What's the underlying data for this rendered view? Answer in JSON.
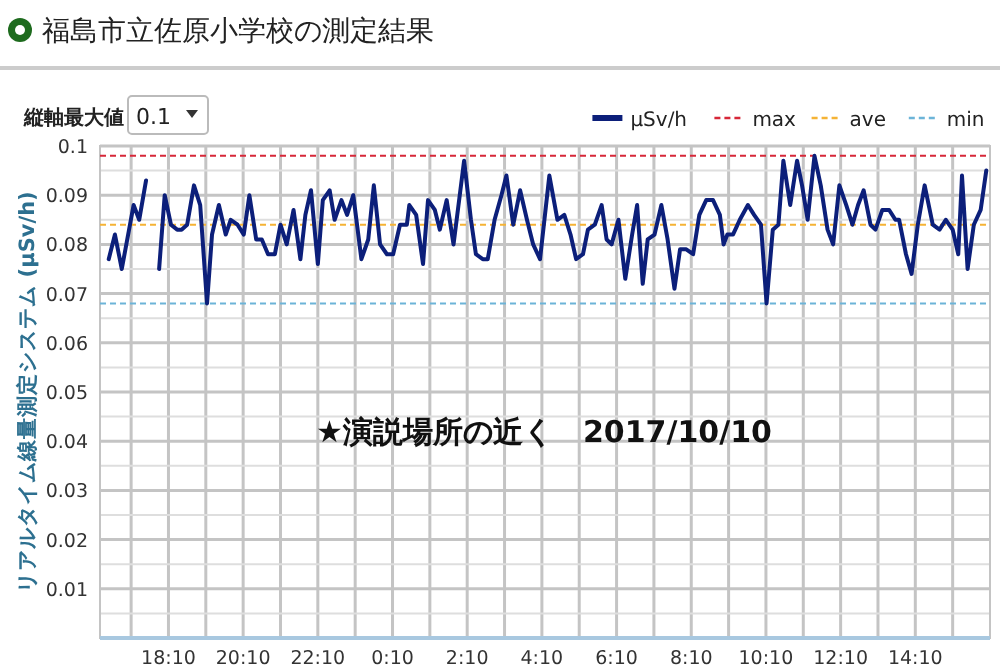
{
  "chart_data": {
    "type": "line",
    "title": "福島市立佐原小学校の測定結果",
    "ylabel": "リアルタイム線量測定システム (μSv/h)",
    "annotations": [
      "縦軸最大値",
      "0.1",
      "★演説場所の近く　2017/10/10"
    ],
    "xlim": [
      "2017-10-09T16:20",
      "2017-10-10T16:10"
    ],
    "ylim": [
      0,
      0.1
    ],
    "xticks": [
      {
        "value": "2017-10-09T17:10",
        "label": null
      },
      {
        "value": "2017-10-09T18:10",
        "label": "18:10"
      },
      {
        "value": "2017-10-09T19:10",
        "label": null
      },
      {
        "value": "2017-10-09T20:10",
        "label": "20:10"
      },
      {
        "value": "2017-10-09T21:10",
        "label": null
      },
      {
        "value": "2017-10-09T22:10",
        "label": "22:10"
      },
      {
        "value": "2017-10-09T23:10",
        "label": null
      },
      {
        "value": "2017-10-10T00:10",
        "label": "0:10"
      },
      {
        "value": "2017-10-10T01:10",
        "label": null
      },
      {
        "value": "2017-10-10T02:10",
        "label": "2:10"
      },
      {
        "value": "2017-10-10T03:10",
        "label": null
      },
      {
        "value": "2017-10-10T04:10",
        "label": "4:10"
      },
      {
        "value": "2017-10-10T05:10",
        "label": null
      },
      {
        "value": "2017-10-10T06:10",
        "label": "6:10"
      },
      {
        "value": "2017-10-10T07:10",
        "label": null
      },
      {
        "value": "2017-10-10T08:10",
        "label": "8:10"
      },
      {
        "value": "2017-10-10T09:10",
        "label": null
      },
      {
        "value": "2017-10-10T10:10",
        "label": "10:10"
      },
      {
        "value": "2017-10-10T11:10",
        "label": null
      },
      {
        "value": "2017-10-10T12:10",
        "label": "12:10"
      },
      {
        "value": "2017-10-10T13:10",
        "label": null
      },
      {
        "value": "2017-10-10T14:10",
        "label": "14:10"
      },
      {
        "value": "2017-10-10T15:10",
        "label": null
      }
    ],
    "yticks": [
      {
        "value": 0,
        "label": null
      },
      {
        "value": 0.005,
        "label": null
      },
      0.01,
      {
        "value": 0.015,
        "label": null
      },
      0.02,
      {
        "value": 0.025,
        "label": null
      },
      0.03,
      {
        "value": 0.035,
        "label": null
      },
      0.04,
      {
        "value": 0.045,
        "label": null
      },
      0.05,
      {
        "value": 0.055,
        "label": null
      },
      0.06,
      {
        "value": 0.065,
        "label": null
      },
      0.07,
      {
        "value": 0.075,
        "label": null
      },
      0.08,
      {
        "value": 0.085,
        "label": null
      },
      0.09,
      {
        "value": 0.095,
        "label": null
      },
      0.1
    ],
    "grid": true,
    "legend": "top right",
    "marker": "none",
    "line_style": "solid",
    "ref_lines": [
      {
        "axis": "y",
        "value": 0.098,
        "label": "max",
        "color": "#d62738",
        "line_style": "dashed"
      },
      {
        "axis": "y",
        "value": 0.084,
        "label": "ave",
        "color": "#f5b335",
        "line_style": "dashed"
      },
      {
        "axis": "y",
        "value": 0.068,
        "label": "min",
        "color": "#6cb4d8",
        "line_style": "dashed"
      }
    ],
    "series": [
      {
        "name": "μSv/h",
        "color": "#0c1f7a",
        "x": [
          "2017-10-09T16:34",
          "2017-10-09T16:44",
          "2017-10-09T16:55",
          "2017-10-09T17:14",
          "2017-10-09T17:23",
          "2017-10-09T17:34",
          "2017-10-09T17:44",
          "2017-10-09T17:55",
          "2017-10-09T18:04",
          "2017-10-09T18:14",
          "2017-10-09T18:24",
          "2017-10-09T18:31",
          "2017-10-09T18:40",
          "2017-10-09T18:51",
          "2017-10-09T19:01",
          "2017-10-09T19:12",
          "2017-10-09T19:20",
          "2017-10-09T19:31",
          "2017-10-09T19:42",
          "2017-10-09T19:50",
          "2017-10-09T20:01",
          "2017-10-09T20:11",
          "2017-10-09T20:20",
          "2017-10-09T20:31",
          "2017-10-09T20:40",
          "2017-10-09T20:50",
          "2017-10-09T21:01",
          "2017-10-09T21:10",
          "2017-10-09T21:20",
          "2017-10-09T21:31",
          "2017-10-09T21:42",
          "2017-10-09T21:50",
          "2017-10-09T21:59",
          "2017-10-09T22:10",
          "2017-10-09T22:18",
          "2017-10-09T22:29",
          "2017-10-09T22:37",
          "2017-10-09T22:48",
          "2017-10-09T22:57",
          "2017-10-09T23:07",
          "2017-10-09T23:20",
          "2017-10-09T23:31",
          "2017-10-09T23:40",
          "2017-10-09T23:50",
          "2017-10-10T00:01",
          "2017-10-10T00:11",
          "2017-10-10T00:22",
          "2017-10-10T00:33",
          "2017-10-10T00:37",
          "2017-10-10T00:48",
          "2017-10-10T00:59",
          "2017-10-10T01:07",
          "2017-10-10T01:18",
          "2017-10-10T01:26",
          "2017-10-10T01:37",
          "2017-10-10T01:48",
          "2017-10-10T02:05",
          "2017-10-10T02:16",
          "2017-10-10T02:24",
          "2017-10-10T02:35",
          "2017-10-10T02:43",
          "2017-10-10T02:54",
          "2017-10-10T03:05",
          "2017-10-10T03:13",
          "2017-10-10T03:24",
          "2017-10-10T03:35",
          "2017-10-10T03:46",
          "2017-10-10T03:56",
          "2017-10-10T04:07",
          "2017-10-10T04:22",
          "2017-10-10T04:35",
          "2017-10-10T04:46",
          "2017-10-10T04:56",
          "2017-10-10T05:05",
          "2017-10-10T05:16",
          "2017-10-10T05:24",
          "2017-10-10T05:35",
          "2017-10-10T05:46",
          "2017-10-10T05:54",
          "2017-10-10T06:02",
          "2017-10-10T06:13",
          "2017-10-10T06:24",
          "2017-10-10T06:35",
          "2017-10-10T06:43",
          "2017-10-10T06:52",
          "2017-10-10T07:00",
          "2017-10-10T07:11",
          "2017-10-10T07:22",
          "2017-10-10T07:32",
          "2017-10-10T07:43",
          "2017-10-10T07:52",
          "2017-10-10T08:02",
          "2017-10-10T08:13",
          "2017-10-10T08:23",
          "2017-10-10T08:34",
          "2017-10-10T08:45",
          "2017-10-10T08:56",
          "2017-10-10T09:02",
          "2017-10-10T09:08",
          "2017-10-10T09:17",
          "2017-10-10T09:28",
          "2017-10-10T09:41",
          "2017-10-10T09:51",
          "2017-10-10T10:02",
          "2017-10-10T10:11",
          "2017-10-10T10:21",
          "2017-10-10T10:30",
          "2017-10-10T10:38",
          "2017-10-10T10:49",
          "2017-10-10T11:00",
          "2017-10-10T11:08",
          "2017-10-10T11:17",
          "2017-10-10T11:28",
          "2017-10-10T11:38",
          "2017-10-10T11:49",
          "2017-10-10T11:58",
          "2017-10-10T12:08",
          "2017-10-10T12:19",
          "2017-10-10T12:29",
          "2017-10-10T12:38",
          "2017-10-10T12:47",
          "2017-10-10T12:58",
          "2017-10-10T13:06",
          "2017-10-10T13:17",
          "2017-10-10T13:28",
          "2017-10-10T13:38",
          "2017-10-10T13:44",
          "2017-10-10T13:55",
          "2017-10-10T14:04",
          "2017-10-10T14:14",
          "2017-10-10T14:25",
          "2017-10-10T14:38",
          "2017-10-10T14:49",
          "2017-10-10T14:59",
          "2017-10-10T15:10",
          "2017-10-10T15:19",
          "2017-10-10T15:25",
          "2017-10-10T15:34",
          "2017-10-10T15:44",
          "2017-10-10T15:55",
          "2017-10-10T16:04"
        ],
        "values": [
          0.077,
          0.082,
          0.075,
          0.088,
          0.085,
          0.093,
          null,
          0.075,
          0.09,
          0.084,
          0.083,
          0.083,
          0.084,
          0.092,
          0.088,
          0.068,
          0.082,
          0.088,
          0.082,
          0.085,
          0.084,
          0.082,
          0.09,
          0.081,
          0.081,
          0.078,
          0.078,
          0.084,
          0.08,
          0.087,
          0.077,
          0.086,
          0.091,
          0.076,
          0.089,
          0.091,
          0.085,
          0.089,
          0.086,
          0.09,
          0.077,
          0.081,
          0.092,
          0.08,
          0.078,
          0.078,
          0.084,
          0.084,
          0.088,
          0.086,
          0.076,
          0.089,
          0.087,
          0.083,
          0.089,
          0.08,
          0.097,
          0.085,
          0.078,
          0.077,
          0.077,
          0.085,
          0.09,
          0.094,
          0.084,
          0.091,
          0.085,
          0.08,
          0.077,
          0.094,
          0.085,
          0.086,
          0.082,
          0.077,
          0.078,
          0.083,
          0.084,
          0.088,
          0.081,
          0.08,
          0.085,
          0.073,
          0.082,
          0.088,
          0.072,
          0.081,
          0.082,
          0.088,
          0.081,
          0.071,
          0.079,
          0.079,
          0.078,
          0.086,
          0.089,
          0.089,
          0.086,
          0.08,
          0.082,
          0.082,
          0.085,
          0.088,
          0.086,
          0.084,
          0.068,
          0.083,
          0.084,
          0.097,
          0.088,
          0.097,
          0.092,
          0.085,
          0.098,
          0.092,
          0.083,
          0.08,
          0.092,
          0.088,
          0.084,
          0.088,
          0.091,
          0.084,
          0.083,
          0.087,
          0.087,
          0.085,
          0.085,
          0.078,
          0.074,
          0.084,
          0.092,
          0.084,
          0.083,
          0.085,
          0.083,
          0.078,
          0.094,
          0.075,
          0.084,
          0.087,
          0.095
        ]
      }
    ]
  }
}
